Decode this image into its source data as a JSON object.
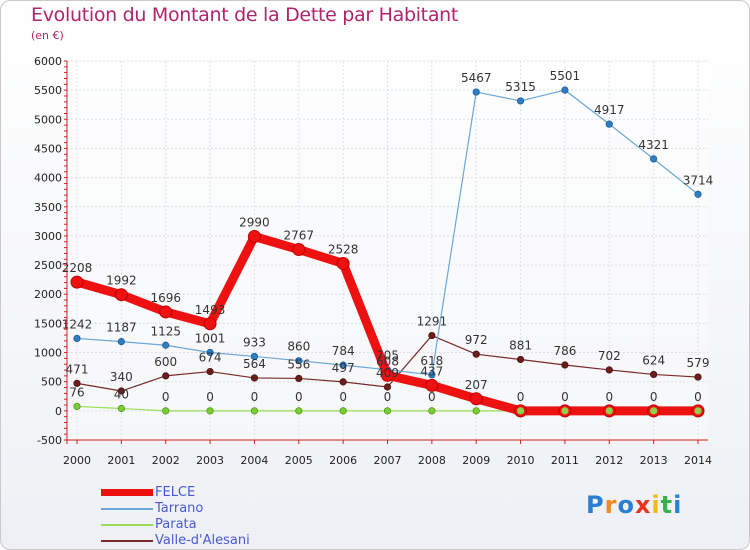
{
  "header": {
    "title": "Evolution du Montant de la Dette par Habitant",
    "subtitle": "(en €)"
  },
  "logo_text": "Proxiti",
  "chart_data": {
    "type": "line",
    "title": "Evolution du Montant de la Dette par Habitant",
    "subtitle": "(en €)",
    "xlabel": "",
    "ylabel": "",
    "x": [
      "2000",
      "2001",
      "2002",
      "2003",
      "2004",
      "2005",
      "2006",
      "2007",
      "2008",
      "2009",
      "2010",
      "2011",
      "2012",
      "2013",
      "2014"
    ],
    "ylim": [
      -500,
      6000
    ],
    "yticks": [
      -500,
      0,
      500,
      1000,
      1500,
      2000,
      2500,
      3000,
      3500,
      4000,
      4500,
      5000,
      5500,
      6000
    ],
    "grid": true,
    "legend_position": "bottom-left",
    "series": [
      {
        "name": "FELCE",
        "color": "#ee1111",
        "values": [
          2208,
          1992,
          1696,
          1493,
          2990,
          2767,
          2528,
          608,
          437,
          207,
          0,
          0,
          0,
          0,
          0
        ],
        "labels": [
          "2208",
          "1992",
          "1696",
          "1493",
          "2990",
          "2767",
          "2528",
          "608",
          "437",
          "207",
          "0",
          "0",
          "0",
          "0",
          "0"
        ]
      },
      {
        "name": "Tarrano",
        "color": "#6aa6d6",
        "values": [
          1242,
          1187,
          1125,
          1001,
          933,
          860,
          784,
          705,
          618,
          5467,
          5315,
          5501,
          4917,
          4321,
          3714
        ],
        "labels": [
          "1242",
          "1187",
          "1125",
          "1001",
          "933",
          "860",
          "784",
          "705",
          "618",
          "5467",
          "5315",
          "5501",
          "4917",
          "4321",
          "3714"
        ]
      },
      {
        "name": "Parata",
        "color": "#99dd55",
        "values": [
          76,
          40,
          0,
          0,
          0,
          0,
          0,
          0,
          0,
          0,
          0,
          0,
          0,
          0,
          0
        ],
        "labels": [
          "76",
          "40",
          "0",
          "0",
          "0",
          "0",
          "0",
          "0",
          "0",
          "",
          "",
          "",
          "",
          "",
          ""
        ]
      },
      {
        "name": "Valle-d'Alesani",
        "color": "#7a2a2a",
        "values": [
          471,
          340,
          600,
          674,
          564,
          556,
          497,
          409,
          1291,
          972,
          881,
          786,
          702,
          624,
          579
        ],
        "labels": [
          "471",
          "340",
          "600",
          "674",
          "564",
          "556",
          "497",
          "409",
          "1291",
          "972",
          "881",
          "786",
          "702",
          "624",
          "579"
        ]
      }
    ]
  }
}
